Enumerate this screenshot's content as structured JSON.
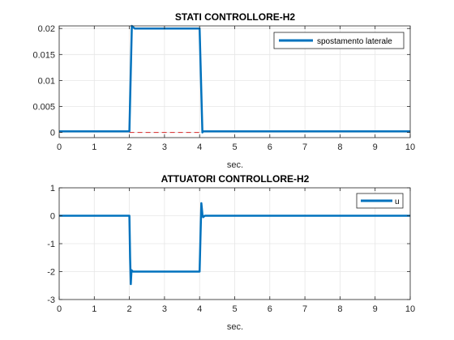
{
  "window": {
    "background": "#ffffff"
  },
  "colors": {
    "series": "#0072bd",
    "reference": "#d62728",
    "grid": "#e6e6e6",
    "axis": "#262626"
  },
  "chart_data": [
    {
      "type": "line",
      "title": "STATI CONTROLLORE-H2",
      "xlabel": "sec.",
      "ylabel": "",
      "xlim": [
        0,
        10
      ],
      "ylim": [
        -0.001,
        0.0205
      ],
      "xticks": [
        0,
        1,
        2,
        3,
        4,
        5,
        6,
        7,
        8,
        9,
        10
      ],
      "xtick_labels": [
        "0",
        "1",
        "2",
        "3",
        "4",
        "5",
        "6",
        "7",
        "8",
        "9",
        "10"
      ],
      "yticks": [
        0,
        0.005,
        0.01,
        0.015,
        0.02
      ],
      "ytick_labels": [
        "0",
        "0.005",
        "0.01",
        "0.015",
        "0.02"
      ],
      "grid": true,
      "legend": {
        "location": "top-right",
        "entries": [
          "spostamento laterale"
        ]
      },
      "series": [
        {
          "name": "spostamento laterale",
          "color": "#0072bd",
          "x": [
            0,
            2.0,
            2.07,
            2.1,
            2.15,
            4.0,
            4.08,
            4.1,
            10
          ],
          "y": [
            0.0002,
            0.0002,
            0.0205,
            0.0203,
            0.02,
            0.02,
            0.0,
            0.0002,
            0.0002
          ]
        },
        {
          "name": "reference",
          "color": "#d62728",
          "dashed": true,
          "x": [
            2.0,
            4.0
          ],
          "y": [
            0,
            0
          ]
        }
      ]
    },
    {
      "type": "line",
      "title": "ATTUATORI CONTROLLORE-H2",
      "xlabel": "sec.",
      "ylabel": "",
      "xlim": [
        0,
        10
      ],
      "ylim": [
        -3,
        1
      ],
      "xticks": [
        0,
        1,
        2,
        3,
        4,
        5,
        6,
        7,
        8,
        9,
        10
      ],
      "xtick_labels": [
        "0",
        "1",
        "2",
        "3",
        "4",
        "5",
        "6",
        "7",
        "8",
        "9",
        "10"
      ],
      "yticks": [
        -3,
        -2,
        -1,
        0,
        1
      ],
      "ytick_labels": [
        "-3",
        "-2",
        "-1",
        "0",
        "1"
      ],
      "grid": true,
      "legend": {
        "location": "top-right",
        "entries": [
          "u"
        ]
      },
      "series": [
        {
          "name": "u",
          "color": "#0072bd",
          "x": [
            0,
            2.0,
            2.02,
            2.04,
            2.06,
            2.1,
            2.2,
            4.0,
            4.02,
            4.05,
            4.08,
            4.1,
            4.15,
            10
          ],
          "y": [
            0,
            0,
            -1.5,
            -2.45,
            -1.95,
            -2.0,
            -2.0,
            -2.0,
            -1.0,
            0.45,
            0.05,
            -0.05,
            0,
            0
          ]
        }
      ]
    }
  ]
}
